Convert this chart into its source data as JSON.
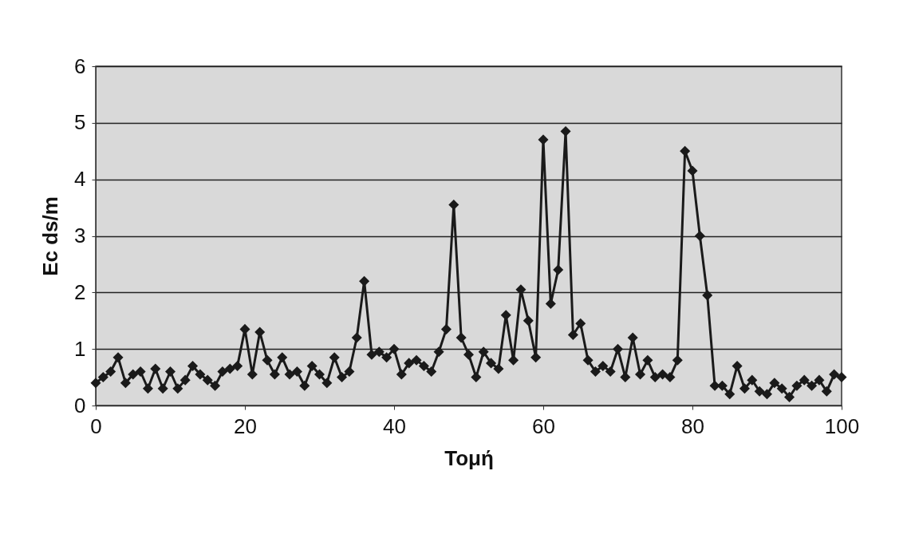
{
  "chart_data": {
    "type": "line",
    "xlabel": "Τομή",
    "ylabel": "Ec ds/m",
    "x": [
      0,
      1,
      2,
      3,
      4,
      5,
      6,
      7,
      8,
      9,
      10,
      11,
      12,
      13,
      14,
      15,
      16,
      17,
      18,
      19,
      20,
      21,
      22,
      23,
      24,
      25,
      26,
      27,
      28,
      29,
      30,
      31,
      32,
      33,
      34,
      35,
      36,
      37,
      38,
      39,
      40,
      41,
      42,
      43,
      44,
      45,
      46,
      47,
      48,
      49,
      50,
      51,
      52,
      53,
      54,
      55,
      56,
      57,
      58,
      59,
      60,
      61,
      62,
      63,
      64,
      65,
      66,
      67,
      68,
      69,
      70,
      71,
      72,
      73,
      74,
      75,
      76,
      77,
      78,
      79,
      80,
      81,
      82,
      83,
      84,
      85,
      86,
      87,
      88,
      89,
      90,
      91,
      92,
      93,
      94,
      95,
      96,
      97,
      98,
      99,
      100
    ],
    "series": [
      {
        "color": "#1a1a1a",
        "values": [
          0.4,
          0.5,
          0.6,
          0.85,
          0.4,
          0.55,
          0.6,
          0.3,
          0.65,
          0.3,
          0.6,
          0.3,
          0.45,
          0.7,
          0.55,
          0.45,
          0.35,
          0.6,
          0.65,
          0.7,
          1.35,
          0.55,
          1.3,
          0.8,
          0.55,
          0.85,
          0.55,
          0.6,
          0.35,
          0.7,
          0.55,
          0.4,
          0.85,
          0.5,
          0.6,
          1.2,
          2.2,
          0.9,
          0.95,
          0.85,
          1.0,
          0.55,
          0.75,
          0.8,
          0.7,
          0.6,
          0.95,
          1.35,
          3.55,
          1.2,
          0.9,
          0.5,
          0.95,
          0.75,
          0.65,
          1.6,
          0.8,
          2.05,
          1.5,
          0.85,
          4.7,
          1.8,
          2.4,
          4.85,
          1.25,
          1.45,
          0.8,
          0.6,
          0.7,
          0.6,
          1.0,
          0.5,
          1.2,
          0.55,
          0.8,
          0.5,
          0.55,
          0.5,
          0.8,
          4.5,
          4.15,
          3.0,
          1.95,
          0.35,
          0.35,
          0.2,
          0.7,
          0.3,
          0.45,
          0.25,
          0.2,
          0.4,
          0.3,
          0.15,
          0.35,
          0.45,
          0.35,
          0.45,
          0.25,
          0.55,
          0.5
        ]
      }
    ],
    "xlim": [
      0,
      100
    ],
    "xticks": [
      0,
      20,
      40,
      60,
      80,
      100
    ],
    "ylim": [
      0,
      6
    ],
    "yticks": [
      0,
      1,
      2,
      3,
      4,
      5,
      6
    ],
    "grid": "y",
    "marker": "diamond",
    "line_style": "solid"
  }
}
